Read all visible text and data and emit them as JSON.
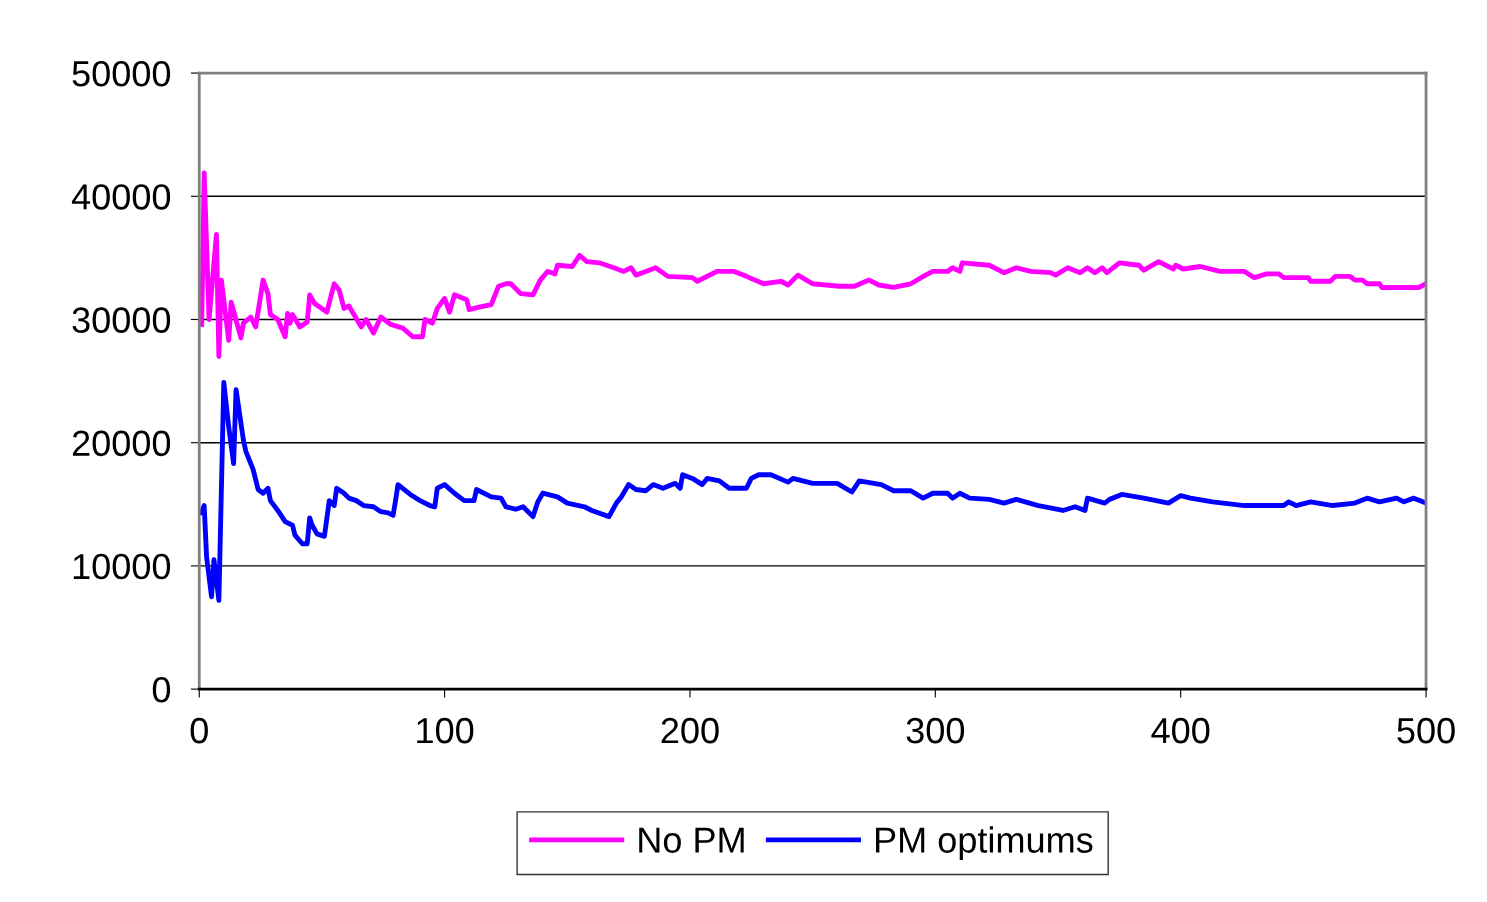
{
  "chart_data": {
    "type": "line",
    "xlim": [
      0,
      500
    ],
    "ylim": [
      0,
      50000
    ],
    "xticks": [
      0,
      100,
      200,
      300,
      400,
      500
    ],
    "yticks": [
      0,
      10000,
      20000,
      30000,
      40000,
      50000
    ],
    "grid": "y",
    "legend": "bottom",
    "marker": "none",
    "line_style": "solid",
    "series": [
      {
        "name": "No PM",
        "color": "#ff00ff",
        "x": [
          1,
          2,
          4,
          7,
          8,
          9,
          12,
          13,
          17,
          18,
          21,
          23,
          26,
          28,
          29,
          32,
          35,
          36,
          37,
          38,
          41,
          44,
          45,
          47,
          52,
          55,
          57,
          59,
          61,
          66,
          68,
          71,
          74,
          78,
          83,
          87,
          91,
          92,
          95,
          97,
          100,
          102,
          104,
          109,
          110,
          114,
          119,
          122,
          125,
          127,
          131,
          136,
          139,
          142,
          145,
          146,
          152,
          155,
          158,
          163,
          169,
          173,
          176,
          178,
          182,
          186,
          191,
          201,
          203,
          211,
          218,
          223,
          230,
          237,
          240,
          244,
          250,
          261,
          267,
          273,
          277,
          283,
          290,
          296,
          299,
          305,
          307,
          310,
          311,
          322,
          328,
          333,
          339,
          347,
          349,
          354,
          359,
          362,
          365,
          368,
          370,
          375,
          383,
          385,
          391,
          397,
          398,
          401,
          408,
          416,
          426,
          430,
          435,
          440,
          442,
          452,
          453,
          461,
          463,
          469,
          471,
          474,
          476,
          481,
          482,
          497,
          500
        ],
        "values": [
          29600,
          41900,
          30000,
          36900,
          27000,
          33200,
          28300,
          31400,
          28500,
          29700,
          30200,
          29400,
          33200,
          32100,
          30400,
          30000,
          28600,
          30500,
          29700,
          30400,
          29400,
          29800,
          32000,
          31300,
          30600,
          32900,
          32400,
          30900,
          31100,
          29400,
          30000,
          28900,
          30200,
          29600,
          29300,
          28600,
          28600,
          30000,
          29700,
          30900,
          31700,
          30600,
          32000,
          31600,
          30800,
          31000,
          31200,
          32700,
          32900,
          32900,
          32100,
          32000,
          33200,
          33900,
          33700,
          34400,
          34300,
          35200,
          34700,
          34600,
          34200,
          33900,
          34200,
          33600,
          33900,
          34200,
          33500,
          33400,
          33100,
          33900,
          33900,
          33500,
          32900,
          33100,
          32800,
          33600,
          32900,
          32700,
          32700,
          33200,
          32800,
          32600,
          32900,
          33600,
          33900,
          33900,
          34200,
          33900,
          34600,
          34400,
          33800,
          34200,
          33900,
          33800,
          33600,
          34200,
          33800,
          34200,
          33800,
          34200,
          33800,
          34600,
          34400,
          34000,
          34700,
          34100,
          34400,
          34100,
          34300,
          33900,
          33900,
          33400,
          33700,
          33700,
          33400,
          33400,
          33100,
          33100,
          33500,
          33500,
          33200,
          33200,
          32900,
          32900,
          32600,
          32600,
          32900
        ]
      },
      {
        "name": "PM optimums",
        "color": "#0000ff",
        "x": [
          1,
          2,
          3,
          5,
          6,
          8,
          10,
          12,
          14,
          15,
          18,
          19,
          22,
          24,
          26,
          28,
          29,
          32,
          35,
          38,
          39,
          42,
          44,
          45,
          46,
          48,
          51,
          53,
          55,
          56,
          59,
          61,
          64,
          67,
          71,
          74,
          77,
          79,
          80,
          81,
          86,
          90,
          94,
          96,
          97,
          100,
          104,
          108,
          112,
          113,
          119,
          123,
          125,
          129,
          132,
          136,
          138,
          140,
          146,
          150,
          157,
          160,
          167,
          170,
          172,
          175,
          178,
          182,
          185,
          189,
          194,
          196,
          197,
          201,
          205,
          207,
          212,
          216,
          223,
          225,
          228,
          233,
          240,
          242,
          250,
          260,
          266,
          269,
          278,
          283,
          290,
          295,
          299,
          305,
          307,
          310,
          314,
          322,
          328,
          333,
          342,
          352,
          357,
          361,
          362,
          369,
          371,
          376,
          385,
          395,
          400,
          404,
          413,
          426,
          442,
          444,
          447,
          453,
          462,
          471,
          476,
          481,
          488,
          491,
          495,
          500
        ],
        "values": [
          14300,
          14900,
          10700,
          7500,
          10500,
          7200,
          24900,
          21300,
          18300,
          24300,
          20200,
          19300,
          17800,
          16200,
          15900,
          16300,
          15300,
          14500,
          13600,
          13300,
          12500,
          11800,
          11800,
          13900,
          13300,
          12600,
          12400,
          15300,
          14900,
          16300,
          15900,
          15500,
          15300,
          14900,
          14800,
          14400,
          14300,
          14100,
          15300,
          16600,
          15800,
          15300,
          14900,
          14800,
          16300,
          16600,
          15900,
          15300,
          15300,
          16200,
          15600,
          15500,
          14800,
          14600,
          14800,
          14000,
          15200,
          15900,
          15600,
          15100,
          14800,
          14500,
          14000,
          15100,
          15600,
          16600,
          16200,
          16100,
          16600,
          16300,
          16700,
          16300,
          17400,
          17100,
          16600,
          17100,
          16900,
          16300,
          16300,
          17100,
          17400,
          17400,
          16800,
          17100,
          16700,
          16700,
          16000,
          16900,
          16600,
          16100,
          16100,
          15500,
          15900,
          15900,
          15500,
          15900,
          15500,
          15400,
          15100,
          15400,
          14900,
          14500,
          14800,
          14500,
          15500,
          15100,
          15400,
          15800,
          15500,
          15100,
          15700,
          15500,
          15200,
          14900,
          14900,
          15200,
          14900,
          15200,
          14900,
          15100,
          15500,
          15200,
          15500,
          15200,
          15500,
          15100
        ]
      }
    ]
  }
}
